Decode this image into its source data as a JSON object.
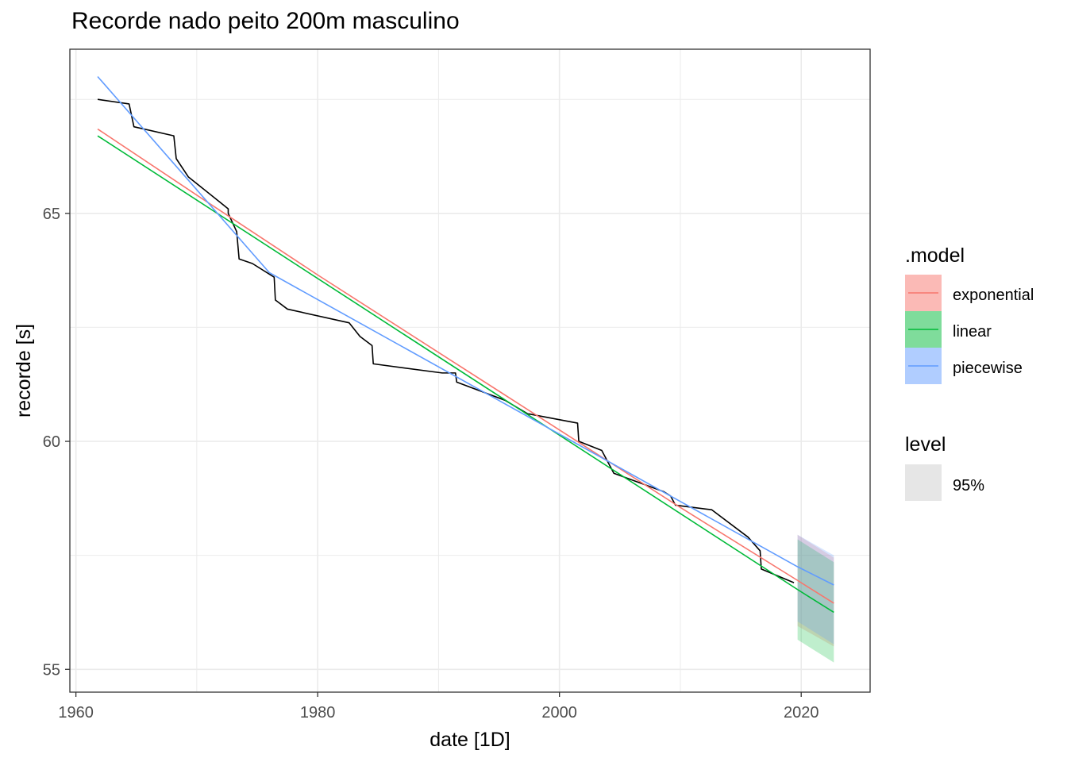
{
  "chart_data": {
    "type": "line",
    "title": "Recorde nado peito 200m masculino",
    "xlabel": "date [1D]",
    "ylabel": "recorde [s]",
    "xlim": [
      1959.5,
      2025.7
    ],
    "ylim": [
      54.5,
      68.6
    ],
    "x_ticks": [
      1960,
      1980,
      2000,
      2020
    ],
    "x_tick_labels": [
      "1960",
      "1980",
      "2000",
      "2020"
    ],
    "y_ticks": [
      55,
      60,
      65
    ],
    "y_tick_labels": [
      "55",
      "60",
      "65"
    ],
    "grid": true,
    "legend_position": "right",
    "legend_model_title": ".model",
    "legend_level_title": "level",
    "level_label": "95%",
    "record": {
      "x": [
        1961.8,
        1964.4,
        1964.8,
        1968.1,
        1968.3,
        1969.3,
        1972.6,
        1972.6,
        1973.3,
        1973.5,
        1974.6,
        1976.4,
        1976.5,
        1977.5,
        1982.6,
        1983.5,
        1984.5,
        1984.6,
        1990.3,
        1991.4,
        1991.5,
        1995.5,
        1997.4,
        1997.5,
        2001.5,
        2001.6,
        2003.5,
        2004.5,
        2008.6,
        2009.2,
        2009.6,
        2012.6,
        2015.6,
        2016.6,
        2016.7,
        2019.4
      ],
      "y": [
        67.5,
        67.4,
        66.9,
        66.7,
        66.2,
        65.8,
        65.1,
        65.0,
        64.6,
        64.0,
        63.9,
        63.6,
        63.1,
        62.9,
        62.6,
        62.3,
        62.1,
        61.7,
        61.5,
        61.5,
        61.3,
        60.9,
        60.6,
        60.6,
        60.4,
        60.0,
        59.8,
        59.3,
        58.9,
        58.8,
        58.6,
        58.5,
        57.9,
        57.6,
        57.2,
        56.9
      ]
    },
    "models": [
      {
        "name": "exponential",
        "color": "#F8766D",
        "fill": "#F8766D",
        "fitted": {
          "x": [
            1961.8,
            1970,
            1980,
            1990,
            2000,
            2010,
            2019.7
          ],
          "y": [
            66.85,
            65.4,
            63.65,
            61.95,
            60.25,
            58.55,
            56.95
          ]
        },
        "forecast": {
          "x": [
            2019.7,
            2022.7
          ],
          "y": [
            56.95,
            56.45
          ],
          "lower": [
            55.95,
            55.5
          ],
          "upper": [
            57.95,
            57.45
          ]
        }
      },
      {
        "name": "linear",
        "color": "#00BA38",
        "fill": "#00BA38",
        "fitted": {
          "x": [
            1961.8,
            2019.7
          ],
          "y": [
            66.7,
            56.75
          ]
        },
        "forecast": {
          "x": [
            2019.7,
            2022.7
          ],
          "y": [
            56.75,
            56.25
          ],
          "lower": [
            55.65,
            55.15
          ],
          "upper": [
            57.85,
            57.35
          ]
        }
      },
      {
        "name": "piecewise",
        "color": "#619CFF",
        "fill": "#619CFF",
        "fitted": {
          "x": [
            1961.8,
            1976.0,
            2019.7
          ],
          "y": [
            68.0,
            63.7,
            57.25
          ]
        },
        "forecast": {
          "x": [
            2019.7,
            2022.7
          ],
          "y": [
            57.25,
            56.85
          ],
          "lower": [
            56.05,
            55.55
          ],
          "upper": [
            57.95,
            57.5
          ]
        }
      }
    ]
  }
}
